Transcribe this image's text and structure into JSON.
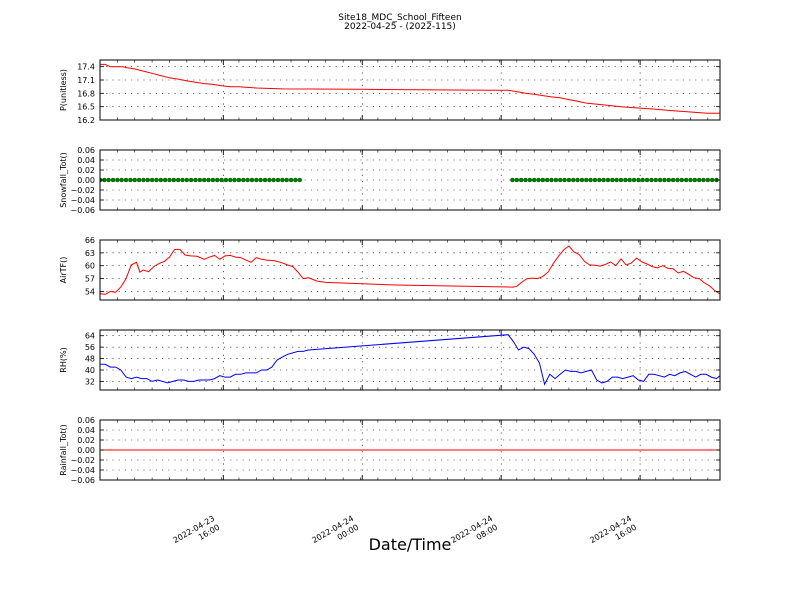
{
  "figure": {
    "title_line1": "Site18_MDC_School_Fifteen",
    "title_line2": "2022-04-25 - (2022-115)",
    "xlabel": "Date/Time"
  },
  "chart_data": [
    {
      "type": "line",
      "ylabel": "P(unitless)",
      "ylim": [
        16.2,
        17.55
      ],
      "yticks": [
        17.4,
        17.1,
        16.8,
        16.5,
        16.2
      ],
      "ytick_labels": [
        "17.4",
        "17.1",
        "16.8",
        "16.5",
        "16.2"
      ],
      "grid": true,
      "color": "#ff0000",
      "marker": "none",
      "x": [
        0.0,
        0.3,
        0.6,
        1.0,
        1.3,
        1.5,
        2.0,
        2.5,
        3.0,
        3.5,
        4.0,
        4.5,
        5.0,
        5.5,
        6.0,
        6.5,
        7.0,
        7.5,
        8.0,
        9.0,
        10.5,
        15.0,
        22.5,
        23.5,
        24.0,
        24.5,
        25.0,
        25.5,
        26.0,
        26.5,
        27.0,
        27.5,
        28.0,
        29.0,
        30.0,
        31.0,
        32.0,
        33.0,
        34.0,
        35.0,
        35.7
      ],
      "values": [
        17.45,
        17.45,
        17.4,
        17.4,
        17.4,
        17.38,
        17.35,
        17.3,
        17.25,
        17.2,
        17.15,
        17.12,
        17.08,
        17.05,
        17.02,
        17.0,
        16.97,
        16.95,
        16.95,
        16.92,
        16.9,
        16.89,
        16.87,
        16.87,
        16.84,
        16.8,
        16.78,
        16.75,
        16.72,
        16.7,
        16.66,
        16.62,
        16.58,
        16.54,
        16.5,
        16.47,
        16.44,
        16.41,
        16.38,
        16.35,
        16.35
      ]
    },
    {
      "type": "scatter",
      "ylabel": "Snowfall_Tot()",
      "ylim": [
        -0.06,
        0.06
      ],
      "yticks": [
        0.06,
        0.04,
        0.02,
        0.0,
        -0.02,
        -0.04,
        -0.06
      ],
      "ytick_labels": [
        "0.06",
        "0.04",
        "0.02",
        "0.00",
        "−0.02",
        "−0.04",
        "−0.06"
      ],
      "grid": true,
      "color": "#008000",
      "marker": "circle",
      "x": [
        0.0,
        0.25,
        0.5,
        0.75,
        1.0,
        1.25,
        1.5,
        1.75,
        2.0,
        2.25,
        2.5,
        2.75,
        3.0,
        3.25,
        3.5,
        3.75,
        4.0,
        4.25,
        4.5,
        4.75,
        5.0,
        5.25,
        5.5,
        5.75,
        6.0,
        6.25,
        6.5,
        6.75,
        7.0,
        7.25,
        7.5,
        7.75,
        8.0,
        8.25,
        8.5,
        8.75,
        9.0,
        9.25,
        9.5,
        9.75,
        10.0,
        10.25,
        10.5,
        10.75,
        11.0,
        11.25,
        11.5,
        23.75,
        24.0,
        24.25,
        24.5,
        24.75,
        25.0,
        25.25,
        25.5,
        25.75,
        26.0,
        26.25,
        26.5,
        26.75,
        27.0,
        27.25,
        27.5,
        27.75,
        28.0,
        28.25,
        28.5,
        28.75,
        29.0,
        29.25,
        29.5,
        29.75,
        30.0,
        30.25,
        30.5,
        30.75,
        31.0,
        31.25,
        31.5,
        31.75,
        32.0,
        32.25,
        32.5,
        32.75,
        33.0,
        33.25,
        33.5,
        33.75,
        34.0,
        34.25,
        34.5,
        34.75,
        35.0,
        35.25,
        35.5
      ],
      "values": [
        0,
        0,
        0,
        0,
        0,
        0,
        0,
        0,
        0,
        0,
        0,
        0,
        0,
        0,
        0,
        0,
        0,
        0,
        0,
        0,
        0,
        0,
        0,
        0,
        0,
        0,
        0,
        0,
        0,
        0,
        0,
        0,
        0,
        0,
        0,
        0,
        0,
        0,
        0,
        0,
        0,
        0,
        0,
        0,
        0,
        0,
        0,
        0,
        0,
        0,
        0,
        0,
        0,
        0,
        0,
        0,
        0,
        0,
        0,
        0,
        0,
        0,
        0,
        0,
        0,
        0,
        0,
        0,
        0,
        0,
        0,
        0,
        0,
        0,
        0,
        0,
        0,
        0,
        0,
        0,
        0,
        0,
        0,
        0,
        0,
        0,
        0,
        0,
        0,
        0,
        0,
        0,
        0,
        0,
        0
      ]
    },
    {
      "type": "line",
      "ylabel": "AirTF()",
      "ylim": [
        52,
        66
      ],
      "yticks": [
        66,
        63,
        60,
        57,
        54
      ],
      "ytick_labels": [
        "66",
        "63",
        "60",
        "57",
        "54"
      ],
      "grid": true,
      "color": "#ff0000",
      "marker": "none",
      "x": [
        0.0,
        0.3,
        0.6,
        0.9,
        1.2,
        1.5,
        1.8,
        2.1,
        2.3,
        2.5,
        2.8,
        3.1,
        3.4,
        3.7,
        4.0,
        4.3,
        4.6,
        4.9,
        5.2,
        5.6,
        6.0,
        6.3,
        6.6,
        6.9,
        7.2,
        7.5,
        7.8,
        8.1,
        8.4,
        8.7,
        9.0,
        9.3,
        9.6,
        10.0,
        10.4,
        10.8,
        11.1,
        11.4,
        11.7,
        12.0,
        12.5,
        13.0,
        17.0,
        23.8,
        24.0,
        24.3,
        24.6,
        24.9,
        25.2,
        25.5,
        25.8,
        26.1,
        26.4,
        26.7,
        27.0,
        27.3,
        27.6,
        27.9,
        28.2,
        28.5,
        28.8,
        29.1,
        29.4,
        29.7,
        30.0,
        30.3,
        30.6,
        30.9,
        31.2,
        31.5,
        31.8,
        32.1,
        32.4,
        32.7,
        33.0,
        33.3,
        33.6,
        33.9,
        34.2,
        34.5,
        34.8,
        35.1,
        35.4,
        35.7
      ],
      "values": [
        53.5,
        53.3,
        54.0,
        53.8,
        55.0,
        57.0,
        60.2,
        60.8,
        58.5,
        59.0,
        58.6,
        59.8,
        60.5,
        61.0,
        62.0,
        63.8,
        63.8,
        62.5,
        62.3,
        62.2,
        61.5,
        62.0,
        62.4,
        61.5,
        62.3,
        62.4,
        62.0,
        61.9,
        61.3,
        60.8,
        61.9,
        61.5,
        61.3,
        61.2,
        60.8,
        60.2,
        59.8,
        58.5,
        57.0,
        57.2,
        56.4,
        56.1,
        55.5,
        55.0,
        55.2,
        56.2,
        57.0,
        57.1,
        57.0,
        57.5,
        58.5,
        60.5,
        62.2,
        63.7,
        64.6,
        63.2,
        62.6,
        61.0,
        60.2,
        60.1,
        59.9,
        60.3,
        60.9,
        60.0,
        61.6,
        60.2,
        60.6,
        61.8,
        60.9,
        60.4,
        59.8,
        59.5,
        60.0,
        59.4,
        59.3,
        58.3,
        58.7,
        58.0,
        57.2,
        57.0,
        56.0,
        55.3,
        54.2,
        53.4
      ]
    },
    {
      "type": "line",
      "ylabel": "RH(%)",
      "ylim": [
        26,
        68
      ],
      "yticks": [
        64,
        56,
        48,
        40,
        32
      ],
      "ytick_labels": [
        "64",
        "56",
        "48",
        "40",
        "32"
      ],
      "grid": true,
      "color": "#0000ff",
      "marker": "none",
      "x": [
        0.0,
        0.3,
        0.6,
        0.9,
        1.2,
        1.5,
        1.8,
        2.1,
        2.4,
        2.7,
        3.0,
        3.3,
        3.6,
        3.9,
        4.2,
        4.5,
        4.8,
        5.1,
        5.4,
        5.7,
        6.0,
        6.3,
        6.6,
        6.9,
        7.2,
        7.5,
        7.8,
        8.1,
        8.4,
        8.7,
        9.0,
        9.3,
        9.6,
        9.9,
        10.2,
        10.5,
        10.8,
        11.1,
        11.4,
        11.7,
        12.0,
        23.5,
        23.8,
        24.1,
        24.4,
        24.7,
        25.0,
        25.3,
        25.6,
        25.9,
        26.2,
        26.5,
        26.8,
        27.1,
        27.4,
        27.7,
        28.0,
        28.3,
        28.6,
        28.9,
        29.2,
        29.5,
        29.8,
        30.1,
        30.4,
        30.7,
        31.0,
        31.3,
        31.6,
        31.9,
        32.2,
        32.5,
        32.8,
        33.1,
        33.4,
        33.7,
        34.0,
        34.3,
        34.6,
        34.9,
        35.2,
        35.5,
        35.7
      ],
      "values": [
        44,
        44,
        42,
        42,
        40,
        35,
        34,
        35,
        34,
        34,
        32,
        33,
        32,
        31,
        32,
        33,
        33,
        32,
        32,
        33,
        33,
        33,
        34,
        36,
        35,
        35,
        37,
        37,
        38,
        38,
        38,
        40,
        40,
        42,
        47,
        49,
        51,
        52,
        53,
        53,
        54,
        64.7,
        60,
        54,
        56,
        55,
        51,
        45,
        30,
        37,
        34,
        37,
        40,
        39,
        39,
        38,
        39,
        40,
        33,
        31,
        32,
        35,
        35,
        34,
        35,
        36,
        33,
        32,
        37,
        37,
        36,
        35,
        37,
        36,
        38,
        39,
        37,
        35,
        37,
        37,
        35,
        34,
        36
      ]
    },
    {
      "type": "line",
      "ylabel": "Rainfall_Tot()",
      "ylim": [
        -0.06,
        0.06
      ],
      "yticks": [
        0.06,
        0.04,
        0.02,
        0.0,
        -0.02,
        -0.04,
        -0.06
      ],
      "ytick_labels": [
        "0.06",
        "0.04",
        "0.02",
        "0.00",
        "−0.02",
        "−0.04",
        "−0.06"
      ],
      "grid": true,
      "color": "#ff0000",
      "marker": "none",
      "x": [
        0.0,
        35.7
      ],
      "values": [
        0,
        0
      ]
    }
  ],
  "xaxis": {
    "xlim": [
      0,
      35.7
    ],
    "ticks": [
      {
        "x": 7.1,
        "line1": "2022-04-23",
        "line2": "16:00"
      },
      {
        "x": 15.1,
        "line1": "2022-04-24",
        "line2": "00:00"
      },
      {
        "x": 23.1,
        "line1": "2022-04-24",
        "line2": "08:00"
      },
      {
        "x": 31.1,
        "line1": "2022-04-24",
        "line2": "16:00"
      }
    ]
  }
}
